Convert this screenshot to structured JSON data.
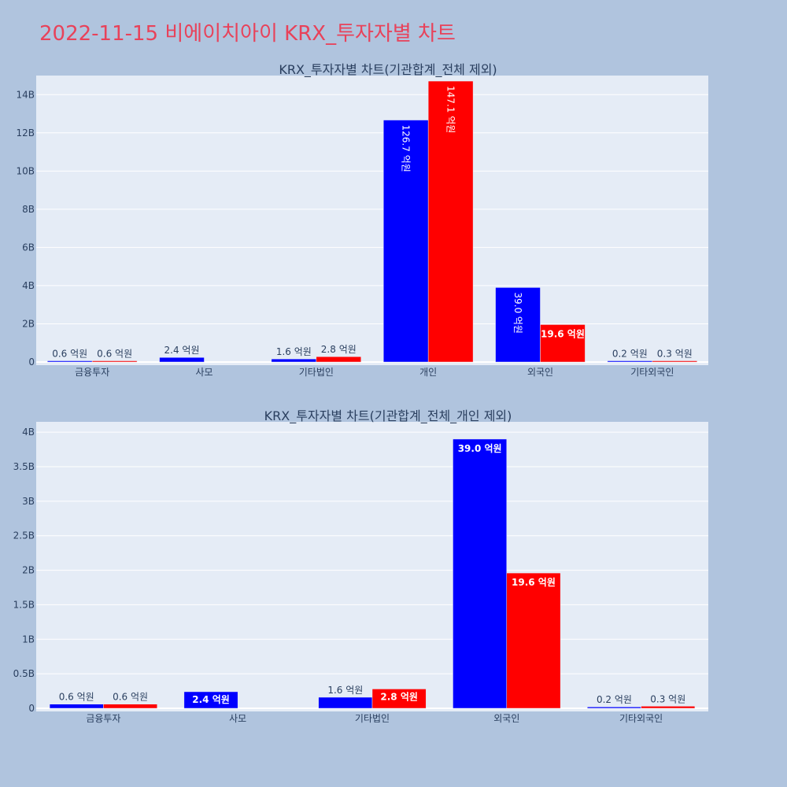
{
  "page_title": "2022-11-15 비에이치아이 KRX_투자자별 차트",
  "colors": {
    "background": "#b0c4de",
    "plot_bg": "#e5ecf6",
    "title": "#e8425a",
    "series_a": "#0000ff",
    "series_b": "#ff0000"
  },
  "chart_data": [
    {
      "type": "bar",
      "title": "KRX_투자자별 차트(기관합계_전체 제외)",
      "categories": [
        "금융투자",
        "사모",
        "기타법인",
        "개인",
        "외국인",
        "기타외국인"
      ],
      "series": [
        {
          "color": "#0000ff",
          "values": [
            60000000,
            240000000,
            160000000,
            12670000000,
            3900000000,
            20000000
          ],
          "labels": [
            "0.6 억원",
            "2.4 억원",
            "1.6 억원",
            "126.7 억원",
            "39.0 억원",
            "0.2 억원"
          ]
        },
        {
          "color": "#ff0000",
          "values": [
            60000000,
            0,
            280000000,
            14710000000,
            1960000000,
            30000000
          ],
          "labels": [
            "0.6 억원",
            "",
            "2.8 억원",
            "147.1 억원",
            "19.6 억원",
            "0.3 억원"
          ]
        }
      ],
      "ylim": [
        0,
        15000000000
      ],
      "yticks": [
        0,
        2000000000,
        4000000000,
        6000000000,
        8000000000,
        10000000000,
        12000000000,
        14000000000
      ],
      "ytick_labels": [
        "0",
        "2B",
        "4B",
        "6B",
        "8B",
        "10B",
        "12B",
        "14B"
      ],
      "grid": true,
      "barmode": "group"
    },
    {
      "type": "bar",
      "title": "KRX_투자자별 차트(기관합계_전체_개인 제외)",
      "categories": [
        "금융투자",
        "사모",
        "기타법인",
        "외국인",
        "기타외국인"
      ],
      "series": [
        {
          "color": "#0000ff",
          "values": [
            60000000,
            240000000,
            160000000,
            3900000000,
            20000000
          ],
          "labels": [
            "0.6 억원",
            "2.4 억원",
            "1.6 억원",
            "39.0 억원",
            "0.2 억원"
          ]
        },
        {
          "color": "#ff0000",
          "values": [
            60000000,
            0,
            280000000,
            1960000000,
            30000000
          ],
          "labels": [
            "0.6 억원",
            "",
            "2.8 억원",
            "19.6 억원",
            "0.3 억원"
          ]
        }
      ],
      "ylim": [
        0,
        4150000000
      ],
      "yticks": [
        0,
        500000000,
        1000000000,
        1500000000,
        2000000000,
        2500000000,
        3000000000,
        3500000000,
        4000000000
      ],
      "ytick_labels": [
        "0",
        "0.5B",
        "1B",
        "1.5B",
        "2B",
        "2.5B",
        "3B",
        "3.5B",
        "4B"
      ],
      "grid": true,
      "barmode": "group"
    }
  ]
}
